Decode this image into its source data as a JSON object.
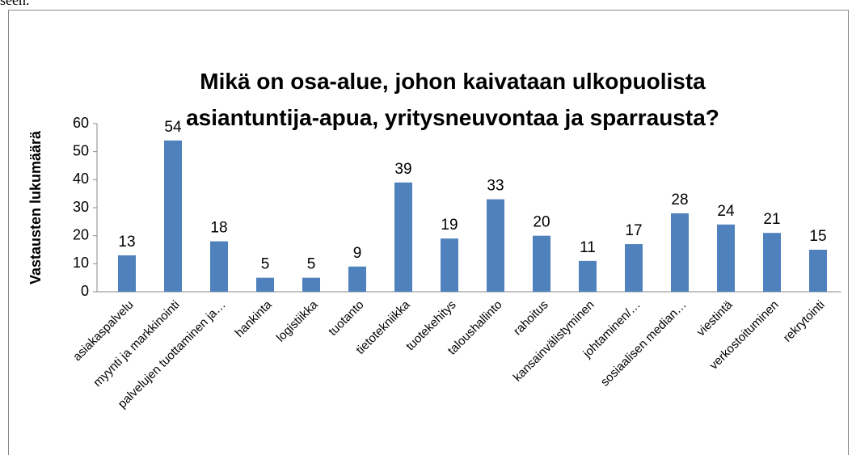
{
  "text_above": "seen.",
  "chart_data": {
    "type": "bar",
    "title": "Mikä on osa-alue, johon kaivataan ulkopuolista asiantuntija-apua, yritysneuvontaa ja sparrausta?",
    "y_label": "Vastausten lukumäärä",
    "categories": [
      "asiakaspalvelu",
      "myynti ja markkinointi",
      "palvelujen tuottaminen ja…",
      "hankinta",
      "logistiikka",
      "tuotanto",
      "tietotekniikka",
      "tuotekehitys",
      "taloushallinto",
      "rahoitus",
      "kansainvälistyminen",
      "johtaminen/…",
      "sosiaalisen median…",
      "viestintä",
      "verkostoituminen",
      "rekrytointi"
    ],
    "values": [
      13,
      54,
      18,
      5,
      5,
      9,
      39,
      19,
      33,
      20,
      11,
      17,
      28,
      24,
      21,
      15
    ],
    "color": "#4f81bd",
    "ylim": [
      0,
      60
    ],
    "yticks": [
      0,
      10,
      20,
      30,
      40,
      50,
      60
    ],
    "grid": false
  }
}
